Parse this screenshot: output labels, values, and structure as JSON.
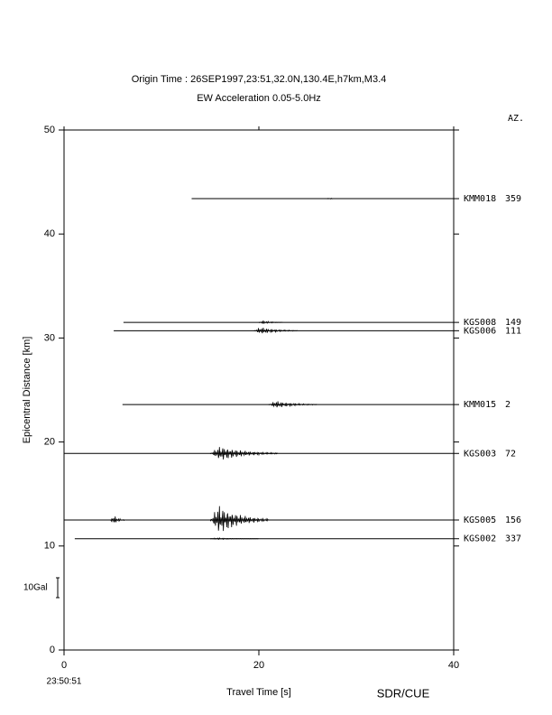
{
  "chart_data": {
    "type": "record-section",
    "title": "Origin Time : 26SEP1997,23:51,32.0N,130.4E,h7km,M3.4",
    "subtitle": "EW Acceleration 0.05-5.0Hz",
    "x_label": "Travel Time [s]",
    "y_label": "Epicentral Distance [km]",
    "origin_label": "23:50:51",
    "azimuth_header": "AZ.",
    "credit": "SDR/CUE",
    "scale_bar": {
      "label": "10Gal",
      "value": 10
    },
    "xlim": [
      0,
      40
    ],
    "xticks": [
      0,
      20,
      40
    ],
    "ylim": [
      0,
      50
    ],
    "yticks": [
      0,
      10,
      20,
      30,
      40,
      50
    ],
    "traces": [
      {
        "name": "KMM018",
        "azimuth": 359,
        "distance": 43.4,
        "start": 13.1,
        "bursts": [
          {
            "start": 27,
            "end": 28,
            "amplitude": 0.5
          }
        ]
      },
      {
        "name": "KGS008",
        "azimuth": 149,
        "distance": 31.5,
        "start": 6.1,
        "bursts": [
          {
            "start": 20,
            "end": 22.5,
            "amplitude": 1
          }
        ]
      },
      {
        "name": "KGS006",
        "azimuth": 111,
        "distance": 30.7,
        "start": 5.1,
        "bursts": [
          {
            "start": 19.5,
            "end": 24,
            "amplitude": 2
          }
        ]
      },
      {
        "name": "KMM015",
        "azimuth": 2,
        "distance": 23.6,
        "start": 6,
        "bursts": [
          {
            "start": 21,
            "end": 26,
            "amplitude": 2
          }
        ]
      },
      {
        "name": "KGS003",
        "azimuth": 72,
        "distance": 18.9,
        "start": 0,
        "bursts": [
          {
            "start": 15,
            "end": 22,
            "amplitude": 4
          }
        ]
      },
      {
        "name": "KGS005",
        "azimuth": 156,
        "distance": 12.5,
        "start": 0,
        "bursts": [
          {
            "start": 4.8,
            "end": 6.2,
            "amplitude": 3
          },
          {
            "start": 15,
            "end": 21,
            "amplitude": 8
          }
        ]
      },
      {
        "name": "KGS002",
        "azimuth": 337,
        "distance": 10.7,
        "start": 1.1,
        "bursts": [
          {
            "start": 15,
            "end": 20,
            "amplitude": 0.5
          }
        ]
      }
    ]
  }
}
